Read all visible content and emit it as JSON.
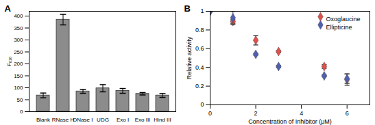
{
  "chart_data": [
    {
      "type": "bar",
      "title": "A",
      "categories": [
        "Blank",
        "RNase H",
        "DNase I",
        "UDG",
        "Exo I",
        "Exo III",
        "Hind III"
      ],
      "values": [
        68,
        385,
        85,
        98,
        87,
        75,
        68
      ],
      "errors": [
        10,
        22,
        8,
        15,
        10,
        5,
        8
      ],
      "color": "#8c8c8c",
      "y_label": "F₆₁₀",
      "ylim": [
        0,
        420
      ],
      "yticks": [
        0,
        50,
        100,
        150,
        200,
        250,
        300,
        350,
        400
      ],
      "grid": false
    },
    {
      "type": "scatter",
      "title": "B",
      "x": [
        0,
        1,
        2,
        3,
        5,
        6
      ],
      "series": [
        {
          "name": "Oxoglaucine",
          "color": "#e0504a",
          "marker": "diamond",
          "values": [
            1,
            0.89,
            0.69,
            0.57,
            0.41,
            0.27
          ],
          "errors": [
            0,
            0.02,
            0.05,
            0.01,
            0.02,
            0.06
          ]
        },
        {
          "name": "Ellipticine",
          "color": "#4f5fb0",
          "marker": "diamond",
          "values": [
            1,
            0.93,
            0.54,
            0.41,
            0.31,
            0.28
          ],
          "errors": [
            0,
            0.07,
            0.01,
            0.01,
            0.01,
            0.05
          ]
        }
      ],
      "x_label": "Concentration of Inhibitor (μM)",
      "y_label": "Relative activity",
      "xlim": [
        0,
        7
      ],
      "xticks": [
        0,
        2,
        4,
        6
      ],
      "ylim": [
        0,
        1
      ],
      "yticks": [
        0,
        0.2,
        0.4,
        0.6,
        0.8,
        1
      ],
      "legend": "upper right",
      "grid": false
    }
  ]
}
